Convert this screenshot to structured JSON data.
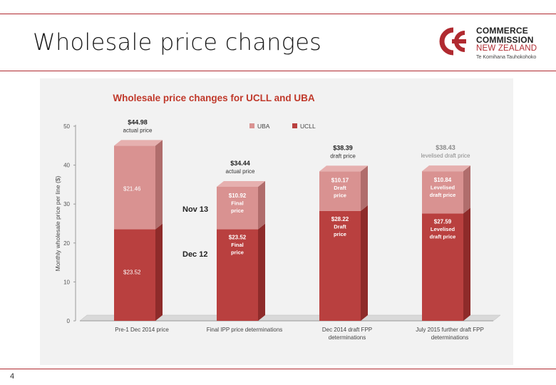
{
  "slide": {
    "title": "Wholesale price changes",
    "page_number": "4"
  },
  "logo": {
    "line1": "COMMERCE",
    "line2": "COMMISSION",
    "line3": "NEW ZEALAND",
    "line4": "Te Komihana Tauhokohoko"
  },
  "colors": {
    "brand_red": "#b02a30",
    "ucll": "#b9403f",
    "uba": "#d99291"
  },
  "chart_data": {
    "type": "bar",
    "stacked": true,
    "title": "Wholesale price changes for UCLL and UBA",
    "ylabel": "Monthly wholesale price per line ($)",
    "xlabel": "",
    "ylim": [
      0,
      50
    ],
    "yticks": [
      "0",
      "10",
      "20",
      "30",
      "40",
      "50"
    ],
    "legend": [
      "UBA",
      "UCLL"
    ],
    "legend_position": "top-center",
    "categories": [
      "Pre-1 Dec 2014 price",
      "Final IPP price determinations",
      "Dec 2014 draft FPP determinations",
      "July 2015 further draft FPP determinations"
    ],
    "series": [
      {
        "name": "UCLL",
        "values": [
          23.52,
          23.52,
          28.22,
          27.59
        ]
      },
      {
        "name": "UBA",
        "values": [
          21.46,
          10.92,
          10.17,
          10.84
        ]
      }
    ],
    "totals": [
      {
        "value": "$44.98",
        "note": "actual price"
      },
      {
        "value": "$34.44",
        "note": "actual price"
      },
      {
        "value": "$38.39",
        "note": "draft price"
      },
      {
        "value": "$38.43",
        "note": "levelised draft price"
      }
    ],
    "ucll_labels": [
      [
        "$23.52"
      ],
      [
        "$23.52",
        "Final",
        "price"
      ],
      [
        "$28.22",
        "Draft",
        "price"
      ],
      [
        "$27.59",
        "Levelised",
        "draft price"
      ]
    ],
    "uba_labels": [
      [
        "$21.46"
      ],
      [
        "$10.92",
        "Final",
        "price"
      ],
      [
        "$10.17",
        "Draft",
        "price"
      ],
      [
        "$10.84",
        "Levelised",
        "draft price"
      ]
    ],
    "annotations": [
      "Nov 13",
      "Dec 12"
    ]
  }
}
